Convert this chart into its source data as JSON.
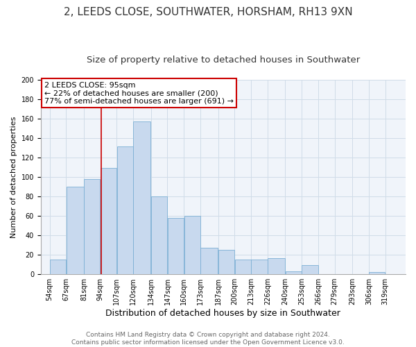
{
  "title": "2, LEEDS CLOSE, SOUTHWATER, HORSHAM, RH13 9XN",
  "subtitle": "Size of property relative to detached houses in Southwater",
  "xlabel": "Distribution of detached houses by size in Southwater",
  "ylabel": "Number of detached properties",
  "footer_line1": "Contains HM Land Registry data © Crown copyright and database right 2024.",
  "footer_line2": "Contains public sector information licensed under the Open Government Licence v3.0.",
  "bar_left_edges": [
    54,
    67,
    81,
    94,
    107,
    120,
    134,
    147,
    160,
    173,
    187,
    200,
    213,
    226,
    240,
    253,
    266,
    279,
    293,
    306
  ],
  "bar_widths": [
    13,
    14,
    13,
    13,
    13,
    14,
    13,
    13,
    13,
    14,
    13,
    13,
    13,
    14,
    13,
    13,
    13,
    14,
    13,
    13
  ],
  "bar_heights": [
    15,
    90,
    98,
    109,
    131,
    157,
    80,
    58,
    60,
    27,
    25,
    15,
    15,
    16,
    3,
    9,
    0,
    0,
    0,
    2
  ],
  "tick_labels": [
    "54sqm",
    "67sqm",
    "81sqm",
    "94sqm",
    "107sqm",
    "120sqm",
    "134sqm",
    "147sqm",
    "160sqm",
    "173sqm",
    "187sqm",
    "200sqm",
    "213sqm",
    "226sqm",
    "240sqm",
    "253sqm",
    "266sqm",
    "279sqm",
    "293sqm",
    "306sqm",
    "319sqm"
  ],
  "bar_color": "#c8d9ee",
  "bar_edge_color": "#7bafd4",
  "vline_x": 95,
  "vline_color": "#cc0000",
  "ann_line1": "2 LEEDS CLOSE: 95sqm",
  "ann_line2": "← 22% of detached houses are smaller (200)",
  "ann_line3": "77% of semi-detached houses are larger (691) →",
  "annotation_box_color": "#cc0000",
  "annotation_box_bg": "#ffffff",
  "ylim": [
    0,
    200
  ],
  "yticks": [
    0,
    20,
    40,
    60,
    80,
    100,
    120,
    140,
    160,
    180,
    200
  ],
  "grid_color": "#d0dce8",
  "bg_color": "#f0f4fa",
  "title_fontsize": 11,
  "subtitle_fontsize": 9.5,
  "xlabel_fontsize": 9,
  "ylabel_fontsize": 8,
  "tick_fontsize": 7,
  "ann_fontsize": 8,
  "footer_fontsize": 6.5
}
